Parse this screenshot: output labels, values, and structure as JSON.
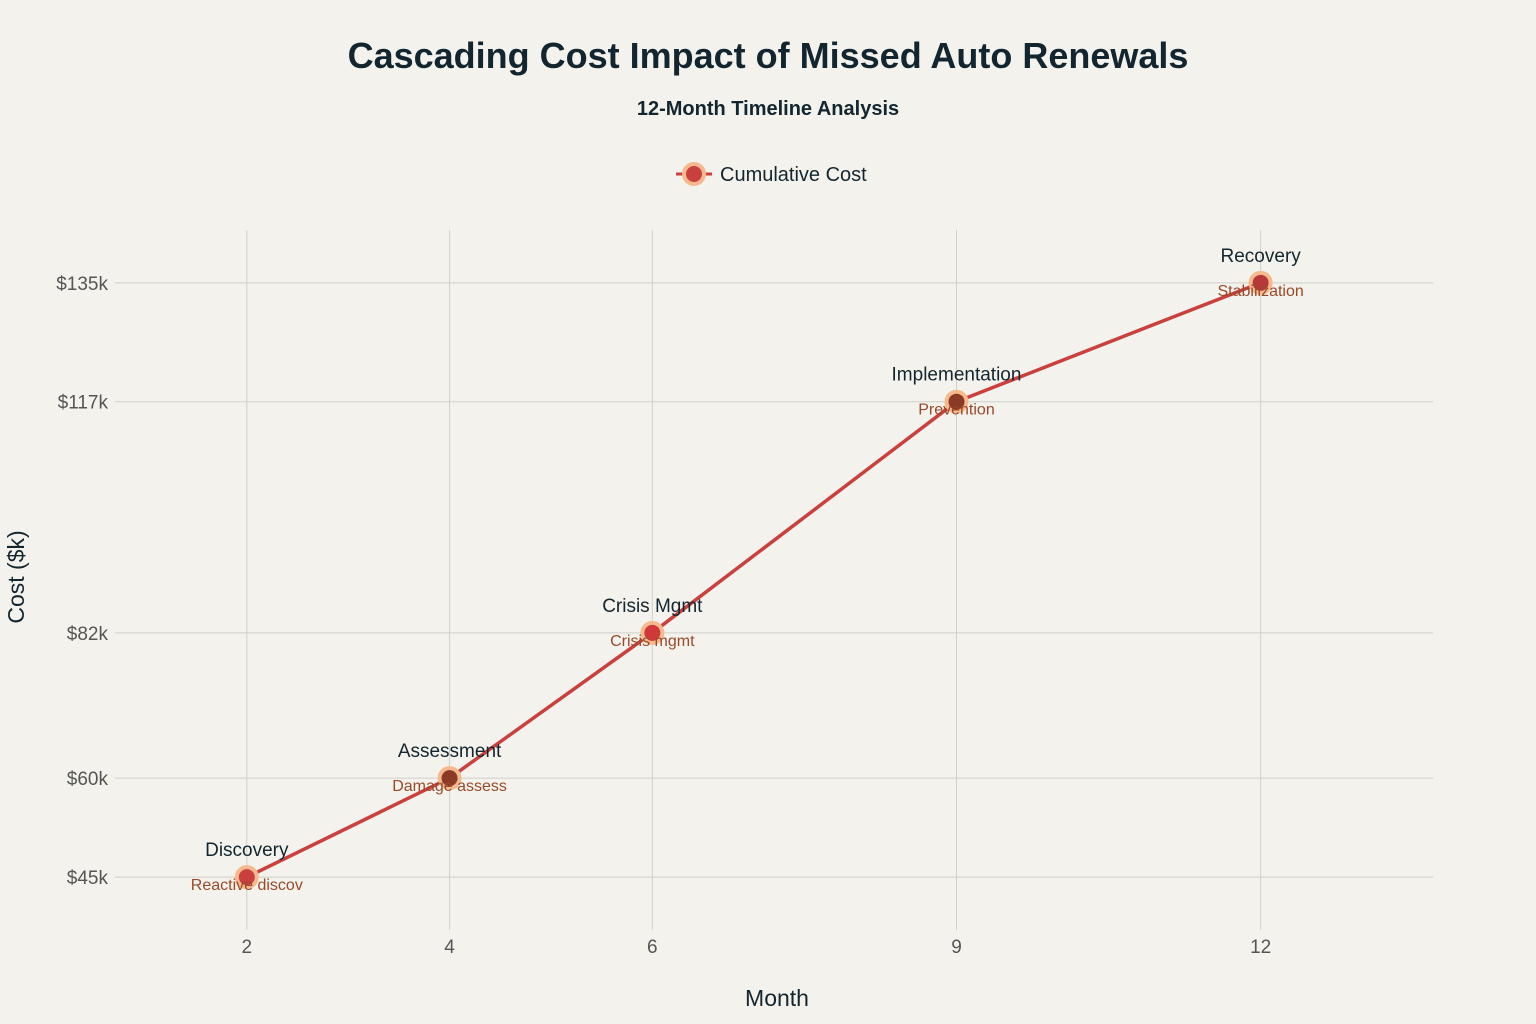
{
  "chart_data": {
    "type": "line",
    "title": "Cascading Cost Impact of Missed Auto Renewals",
    "subtitle": "12-Month Timeline Analysis",
    "xlabel": "Month",
    "ylabel": "Cost ($k)",
    "x_ticks": [
      2,
      4,
      6,
      9,
      12
    ],
    "y_ticks": [
      45,
      60,
      82,
      117,
      135
    ],
    "y_tick_labels": [
      "$45k",
      "$60k",
      "$82k",
      "$117k",
      "$135k"
    ],
    "xlim": [
      0.7,
      13.7
    ],
    "ylim": [
      37,
      143
    ],
    "grid": true,
    "legend_position": "top-center",
    "series": [
      {
        "name": "Cumulative Cost",
        "line_color": "#c9403f",
        "marker_border_color": "#f6b98d",
        "points": [
          {
            "x": 2,
            "y": 45,
            "label": "Discovery",
            "sublabel": "Reactive discov",
            "marker_color": "#c9403f"
          },
          {
            "x": 4,
            "y": 60,
            "label": "Assessment",
            "sublabel": "Damage assess",
            "marker_color": "#8b3a25"
          },
          {
            "x": 6,
            "y": 82,
            "label": "Crisis Mgmt",
            "sublabel": "Crisis mgmt",
            "marker_color": "#d0393a"
          },
          {
            "x": 9,
            "y": 117,
            "label": "Implementation",
            "sublabel": "Prevention",
            "marker_color": "#8b3a25"
          },
          {
            "x": 12,
            "y": 135,
            "label": "Recovery",
            "sublabel": "Stabilization",
            "marker_color": "#b5383a"
          }
        ]
      }
    ]
  }
}
